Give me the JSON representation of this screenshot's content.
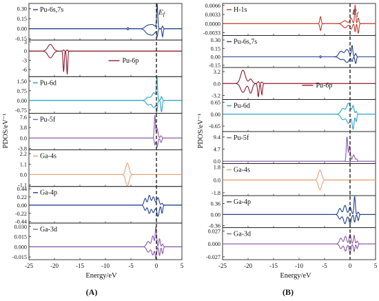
{
  "chart_data": [
    {
      "type": "line",
      "figure_label": "(A)",
      "xlabel": "Energy/eV",
      "ylabel": "PDOS/eV⁻¹",
      "xlim": [
        -25,
        5
      ],
      "x_ticks": [
        -25,
        -20,
        -15,
        -10,
        -5,
        0,
        5
      ],
      "fermi_level": {
        "label": "Ef",
        "base": "E",
        "sub": "f",
        "x": 0
      },
      "panels": [
        {
          "name": "Pu-6s,7s",
          "color": "#1e3f8c",
          "ylim": [
            -0.17,
            0.38
          ],
          "ticks": [
            0.3,
            0.15,
            0.0,
            -0.15
          ],
          "tick_labels": [
            "0.30",
            "0.15",
            "0.00",
            "-0.15"
          ],
          "peaks": [
            {
              "x": -5.6,
              "w": 0.2,
              "u": 0.02,
              "d": 0.02
            },
            {
              "x": -1.8,
              "w": 1.0,
              "u": 0.04,
              "d": 0.06
            },
            {
              "x": -0.8,
              "w": 1.2,
              "u": 0.06,
              "d": 0.09
            },
            {
              "x": 0.15,
              "w": 0.25,
              "u": 0.36,
              "d": 0.1
            },
            {
              "x": 1.2,
              "w": 0.25,
              "u": 0.04,
              "d": 0.12
            }
          ]
        },
        {
          "name": "Pu-6p",
          "color": "#8b1a2b",
          "ylim": [
            -8.3,
            3.6
          ],
          "ticks": [
            3,
            0,
            -3,
            -6
          ],
          "tick_labels": [
            "3",
            "0",
            "-3",
            "-6"
          ],
          "peaks": [
            {
              "x": -20.8,
              "w": 1.1,
              "u": 2.2,
              "d": 2.2
            },
            {
              "x": -18.2,
              "w": 0.25,
              "u": 0.4,
              "d": 6.8
            },
            {
              "x": -17.5,
              "w": 0.25,
              "u": 0.4,
              "d": 7.6
            }
          ]
        },
        {
          "name": "Pu-6d",
          "color": "#2aa1c8",
          "ylim": [
            -1.0,
            1.85
          ],
          "ticks": [
            1.5,
            0.75,
            0.0,
            -0.75
          ],
          "tick_labels": [
            "1.50",
            "0.75",
            "0.00",
            "-0.75"
          ],
          "peaks": [
            {
              "x": -1.6,
              "w": 0.9,
              "u": 0.25,
              "d": 0.35
            },
            {
              "x": -0.5,
              "w": 0.8,
              "u": 0.6,
              "d": 0.55
            },
            {
              "x": 0.1,
              "w": 0.25,
              "u": 1.8,
              "d": 0.7
            },
            {
              "x": 1.0,
              "w": 0.3,
              "u": 0.3,
              "d": 0.9
            }
          ]
        },
        {
          "name": "Pu-5f",
          "color": "#8a5aa8",
          "ylim": [
            -4.3,
            9.0
          ],
          "ticks": [
            7.6,
            3.8,
            0.0,
            -3.8
          ],
          "tick_labels": [
            "7.6",
            "3.8",
            "0.0",
            "-3.8"
          ],
          "peaks": [
            {
              "x": -0.3,
              "w": 0.25,
              "u": 8.4,
              "d": 2.5
            },
            {
              "x": 0.15,
              "w": 0.35,
              "u": 3.5,
              "d": 3.2
            },
            {
              "x": 0.9,
              "w": 0.35,
              "u": 0.8,
              "d": 1.6
            }
          ]
        },
        {
          "name": "Ga-4s",
          "color": "#e8a071",
          "ylim": [
            -1.25,
            2.6
          ],
          "ticks": [
            2.2,
            1.1,
            0.0,
            -1.1
          ],
          "tick_labels": [
            "2.2",
            "1.1",
            "0.0",
            "-1.1"
          ],
          "peaks": [
            {
              "x": -5.7,
              "w": 0.7,
              "u": 1.2,
              "d": 1.2
            }
          ]
        },
        {
          "name": "Ga-4p",
          "color": "#1e3f8c",
          "ylim": [
            -0.48,
            0.5
          ],
          "ticks": [
            0.44,
            0.22,
            0.0,
            -0.22,
            -0.44
          ],
          "tick_labels": [
            "0.44",
            "0.22",
            "0.00",
            "-0.22",
            "-0.44"
          ],
          "peaks": [
            {
              "x": -2.2,
              "w": 0.5,
              "u": 0.18,
              "d": 0.14
            },
            {
              "x": -1.4,
              "w": 0.5,
              "u": 0.26,
              "d": 0.22
            },
            {
              "x": -0.6,
              "w": 0.6,
              "u": 0.22,
              "d": 0.2
            },
            {
              "x": 0.3,
              "w": 0.5,
              "u": 0.2,
              "d": 0.3
            },
            {
              "x": 1.1,
              "w": 0.3,
              "u": 0.05,
              "d": 0.22
            }
          ]
        },
        {
          "name": "Ga-3d",
          "color": "#8a5aa8",
          "ylim": [
            -0.019,
            0.035
          ],
          "ticks": [
            0.03,
            0.015,
            0.0,
            -0.015
          ],
          "tick_labels": [
            "0.030",
            "0.015",
            "0.000",
            "-0.015"
          ],
          "peaks": [
            {
              "x": -1.6,
              "w": 0.7,
              "u": 0.008,
              "d": 0.008
            },
            {
              "x": -0.7,
              "w": 0.5,
              "u": 0.016,
              "d": 0.012
            },
            {
              "x": -0.1,
              "w": 0.3,
              "u": 0.03,
              "d": 0.018
            },
            {
              "x": 0.6,
              "w": 0.3,
              "u": 0.012,
              "d": 0.013
            },
            {
              "x": 1.2,
              "w": 0.3,
              "u": 0.004,
              "d": 0.01
            }
          ]
        }
      ]
    },
    {
      "type": "line",
      "figure_label": "(B)",
      "xlabel": "Energy/eV",
      "ylabel": "PDOS/eV⁻¹",
      "xlim": [
        -25,
        5
      ],
      "x_ticks": [
        -25,
        -20,
        -15,
        -10,
        -5,
        0,
        5
      ],
      "fermi_level": {
        "label": "Ef",
        "base": "E",
        "sub": "f",
        "x": 0
      },
      "panels": [
        {
          "name": "H-1s",
          "color": "#c0392b",
          "ylim": [
            -0.0043,
            0.0073
          ],
          "ticks": [
            0.0066,
            0.0033,
            0.0,
            -0.0033
          ],
          "tick_labels": [
            "0.0066",
            "0.0033",
            "0.0000",
            "-0.0033"
          ],
          "peaks": [
            {
              "x": -5.8,
              "w": 0.3,
              "u": 0.0025,
              "d": 0.0025
            },
            {
              "x": -1.0,
              "w": 1.0,
              "u": 0.001,
              "d": 0.0015
            },
            {
              "x": 0.2,
              "w": 0.5,
              "u": 0.002,
              "d": 0.002
            },
            {
              "x": 1.0,
              "w": 0.25,
              "u": 0.0068,
              "d": 0.003
            },
            {
              "x": 1.6,
              "w": 0.3,
              "u": 0.002,
              "d": 0.0035
            }
          ]
        },
        {
          "name": "Pu-6s,7s",
          "color": "#1e3f8c",
          "ylim": [
            -0.19,
            0.38
          ],
          "ticks": [
            0.3,
            0.15,
            0.0,
            -0.15
          ],
          "tick_labels": [
            "0.30",
            "0.15",
            "0.00",
            "-0.15"
          ],
          "peaks": [
            {
              "x": -5.8,
              "w": 0.2,
              "u": 0.02,
              "d": 0.02
            },
            {
              "x": -1.8,
              "w": 0.9,
              "u": 0.1,
              "d": 0.05
            },
            {
              "x": -0.6,
              "w": 0.9,
              "u": 0.13,
              "d": 0.1
            },
            {
              "x": 0.4,
              "w": 0.3,
              "u": 0.2,
              "d": 0.08
            },
            {
              "x": 1.1,
              "w": 0.3,
              "u": 0.06,
              "d": 0.12
            }
          ]
        },
        {
          "name": "Pu-6p",
          "color": "#8b1a2b",
          "ylim": [
            -4.3,
            4.3
          ],
          "ticks": [
            3.2,
            0.0,
            -3.2
          ],
          "tick_labels": [
            "3.2",
            "0.0",
            "-3.2"
          ],
          "peaks": [
            {
              "x": -21.0,
              "w": 1.0,
              "u": 3.6,
              "d": 2.4
            },
            {
              "x": -19.5,
              "w": 0.7,
              "u": 1.2,
              "d": 2.6
            },
            {
              "x": -18.0,
              "w": 0.3,
              "u": 0.5,
              "d": 3.6
            },
            {
              "x": -17.3,
              "w": 0.3,
              "u": 0.4,
              "d": 3.0
            }
          ]
        },
        {
          "name": "Pu-6d",
          "color": "#2aa1c8",
          "ylim": [
            -0.95,
            0.8
          ],
          "ticks": [
            0.65,
            0.0,
            -0.65
          ],
          "tick_labels": [
            "0.65",
            "0.00",
            "-0.65"
          ],
          "peaks": [
            {
              "x": -1.4,
              "w": 0.9,
              "u": 0.3,
              "d": 0.3
            },
            {
              "x": -0.3,
              "w": 0.8,
              "u": 0.6,
              "d": 0.5
            },
            {
              "x": 0.6,
              "w": 0.4,
              "u": 0.45,
              "d": 0.8
            },
            {
              "x": 1.2,
              "w": 0.3,
              "u": 0.15,
              "d": 0.4
            }
          ]
        },
        {
          "name": "Pu-5f",
          "color": "#8a5aa8",
          "ylim": [
            -0.9,
            11.5
          ],
          "ticks": [
            9.4,
            4.7,
            0.0
          ],
          "tick_labels": [
            "9.4",
            "4.7",
            "0.0"
          ],
          "peaks": [
            {
              "x": -0.6,
              "w": 0.3,
              "u": 9.6,
              "d": 0.2
            },
            {
              "x": -0.1,
              "w": 0.35,
              "u": 6.0,
              "d": 0.2
            },
            {
              "x": 0.7,
              "w": 0.5,
              "u": 2.5,
              "d": 0.1
            },
            {
              "x": 1.3,
              "w": 0.3,
              "u": 0.8,
              "d": 0.1
            }
          ]
        },
        {
          "name": "Ga-4s",
          "color": "#e8a071",
          "ylim": [
            -2.2,
            2.3
          ],
          "ticks": [
            1.8,
            0.0,
            -1.8
          ],
          "tick_labels": [
            "1.8",
            "0.0",
            "-1.8"
          ],
          "peaks": [
            {
              "x": -5.9,
              "w": 0.7,
              "u": 1.4,
              "d": 1.4
            }
          ]
        },
        {
          "name": "Ga-4p",
          "color": "#1e3f8c",
          "ylim": [
            -0.43,
            0.62
          ],
          "ticks": [
            0.36,
            0.0,
            -0.36
          ],
          "tick_labels": [
            "0.36",
            "0.00",
            "-0.36"
          ],
          "peaks": [
            {
              "x": -2.0,
              "w": 0.6,
              "u": 0.2,
              "d": 0.15
            },
            {
              "x": -1.0,
              "w": 0.6,
              "u": 0.3,
              "d": 0.3
            },
            {
              "x": 0.0,
              "w": 0.5,
              "u": 0.25,
              "d": 0.3
            },
            {
              "x": 0.9,
              "w": 0.3,
              "u": 0.6,
              "d": 0.25
            },
            {
              "x": 1.6,
              "w": 0.3,
              "u": 0.08,
              "d": 0.2
            }
          ]
        },
        {
          "name": "Ga-3d",
          "color": "#8a5aa8",
          "ylim": [
            -0.033,
            0.034
          ],
          "ticks": [
            0.027,
            0.0,
            -0.027
          ],
          "tick_labels": [
            "0.027",
            "0.000",
            "-0.027"
          ],
          "peaks": [
            {
              "x": -1.8,
              "w": 0.6,
              "u": 0.012,
              "d": 0.01
            },
            {
              "x": -0.9,
              "w": 0.5,
              "u": 0.016,
              "d": 0.015
            },
            {
              "x": 0.0,
              "w": 0.4,
              "u": 0.02,
              "d": 0.02
            },
            {
              "x": 0.8,
              "w": 0.3,
              "u": 0.018,
              "d": 0.016
            },
            {
              "x": 1.4,
              "w": 0.3,
              "u": 0.006,
              "d": 0.01
            }
          ]
        }
      ]
    }
  ]
}
